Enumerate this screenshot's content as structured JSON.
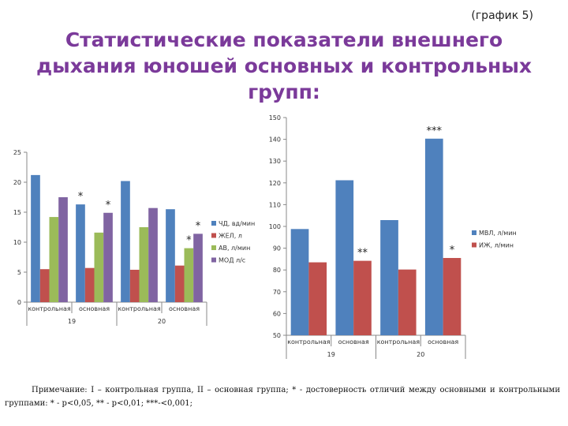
{
  "header": {
    "graph_label": "(график 5)",
    "title_lines": [
      "Статистические показатели внешнего",
      "дыхания юношей основных и контрольных",
      "групп:"
    ]
  },
  "chart_data": [
    {
      "type": "bar",
      "categories": [
        "контрольная",
        "основная",
        "контрольная",
        "основная"
      ],
      "groups": [
        {
          "label": "19",
          "span": [
            0,
            1
          ]
        },
        {
          "label": "20",
          "span": [
            2,
            3
          ]
        }
      ],
      "series": [
        {
          "name": "ЧД, вд/мин",
          "color": "#4f81bd",
          "values": [
            21.2,
            16.3,
            20.2,
            15.5
          ]
        },
        {
          "name": "ЖЕЛ, л",
          "color": "#c0504d",
          "values": [
            5.5,
            5.7,
            5.4,
            6.1
          ]
        },
        {
          "name": "АВ, л/мин",
          "color": "#9bbb59",
          "values": [
            14.2,
            11.6,
            12.5,
            9.0
          ]
        },
        {
          "name": "МОД л/с",
          "color": "#8064a2",
          "values": [
            17.5,
            14.9,
            15.7,
            11.4
          ]
        }
      ],
      "annotations": [
        {
          "category": 1,
          "series": 0,
          "text": "*"
        },
        {
          "category": 1,
          "series": 3,
          "text": "*"
        },
        {
          "category": 3,
          "series": 2,
          "text": "*"
        },
        {
          "category": 3,
          "series": 3,
          "text": "*"
        }
      ],
      "ylim": [
        0,
        25
      ],
      "yticks": [
        0,
        5,
        10,
        15,
        20,
        25
      ],
      "legend": "right",
      "grid": false
    },
    {
      "type": "bar",
      "categories": [
        "контрольная",
        "основная",
        "контрольная",
        "основная"
      ],
      "groups": [
        {
          "label": "19",
          "span": [
            0,
            1
          ]
        },
        {
          "label": "20",
          "span": [
            2,
            3
          ]
        }
      ],
      "series": [
        {
          "name": "МВЛ, л/мин",
          "color": "#4f81bd",
          "values": [
            98.8,
            121.2,
            102.9,
            140.3
          ]
        },
        {
          "name": "ИЖ, л/мин",
          "color": "#c0504d",
          "values": [
            83.5,
            84.2,
            80.2,
            85.5
          ]
        }
      ],
      "annotations": [
        {
          "category": 3,
          "series": 0,
          "text": "***"
        },
        {
          "category": 1,
          "series": 1,
          "text": "**"
        },
        {
          "category": 3,
          "series": 1,
          "text": "*"
        }
      ],
      "ylim": [
        50,
        150
      ],
      "yticks": [
        50,
        60,
        70,
        80,
        90,
        100,
        110,
        120,
        130,
        140,
        150
      ],
      "legend": "right",
      "grid": false
    }
  ],
  "note": {
    "text": "Примечание: I – контрольная группа, II – основная группа; * - достоверность отличий между основными и контрольными группами: * - p<0,05, ** - p<0,01; ***-<0,001;"
  }
}
